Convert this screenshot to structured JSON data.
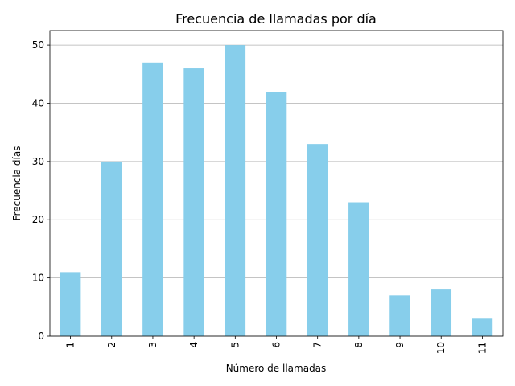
{
  "chart_data": {
    "type": "bar",
    "title": "Frecuencia de llamadas por día",
    "xlabel": "Número de llamadas",
    "ylabel": "Frecuencia días",
    "categories": [
      "1",
      "2",
      "3",
      "4",
      "5",
      "6",
      "7",
      "8",
      "9",
      "10",
      "11"
    ],
    "values": [
      11,
      30,
      47,
      46,
      50,
      42,
      33,
      23,
      7,
      8,
      3
    ],
    "ylim": [
      0,
      52.5
    ],
    "yticks": [
      0,
      10,
      20,
      30,
      40,
      50
    ],
    "grid": "y",
    "legend": "none",
    "bar_color": "#87ceeb",
    "grid_color": "#b0b0b0",
    "x_tick_rotation": "vertical"
  }
}
